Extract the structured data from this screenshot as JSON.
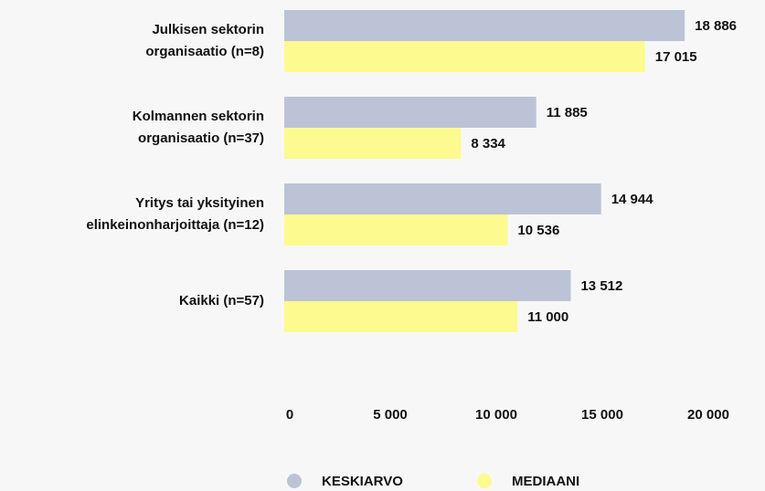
{
  "chart_data": {
    "type": "bar",
    "orientation": "horizontal",
    "categories": [
      "Julkisen sektorin\norganisaatio (n=8)",
      "Kolmannen sektorin\norganisaatio (n=37)",
      "Yritys tai yksityinen\nelinkeinonharjoittaja (n=12)",
      "Kaikki (n=57)"
    ],
    "series": [
      {
        "name": "KESKIARVO",
        "color": "#bcc3d6",
        "values": [
          18886,
          11885,
          14944,
          13512
        ],
        "value_labels": [
          "18 886",
          "11 885",
          "14 944",
          "13 512"
        ]
      },
      {
        "name": "MEDIAANI",
        "color": "#fdfa8f",
        "values": [
          17015,
          8334,
          10536,
          11000
        ],
        "value_labels": [
          "17 015",
          "8 334",
          "10 536",
          "11 000"
        ]
      }
    ],
    "xlim": [
      0,
      20000
    ],
    "xticks": [
      0,
      {
        "value": 5000,
        "label": "5 000"
      },
      {
        "value": 10000,
        "label": "10 000"
      },
      {
        "value": 15000,
        "label": "15 000"
      },
      {
        "value": 20000,
        "label": "20 000"
      }
    ],
    "grid": false,
    "legend": "bottom"
  }
}
